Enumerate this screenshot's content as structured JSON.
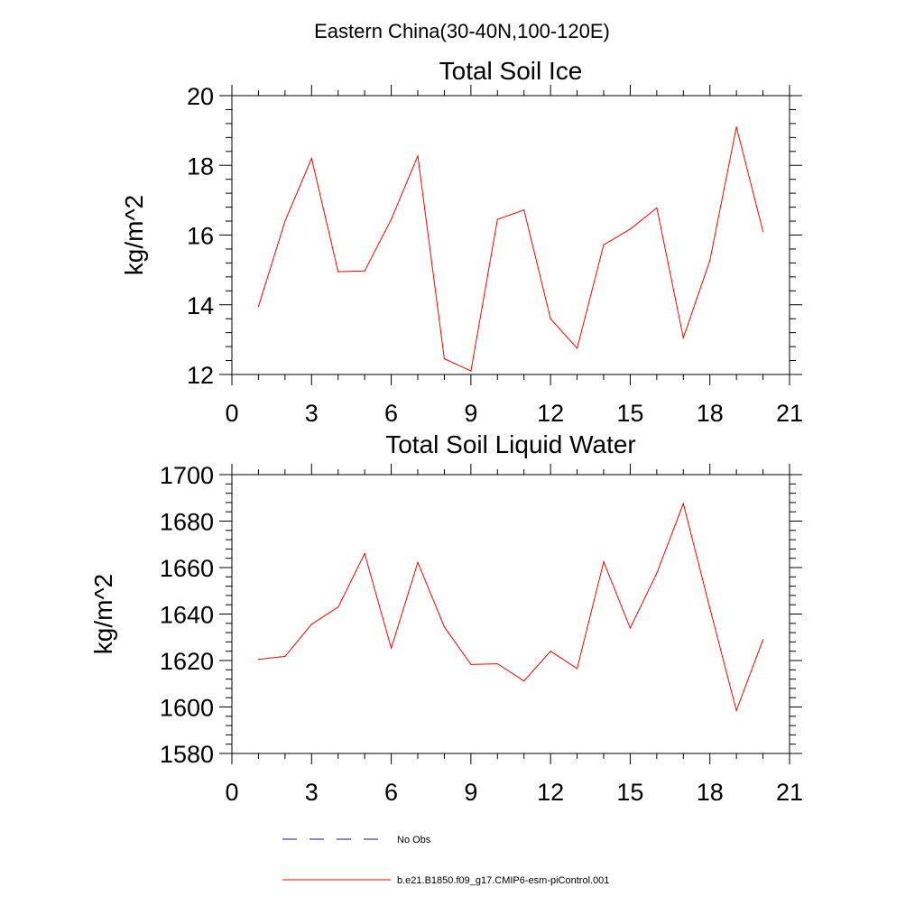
{
  "figure_title": "Eastern China(30-40N,100-120E)",
  "colors": {
    "series_line": "#ff0000",
    "obs_line": "#1a1a6e",
    "frame": "#000000"
  },
  "legend": [
    {
      "label": "No Obs",
      "style": "dashed",
      "color": "#1a1a6e"
    },
    {
      "label": "b.e21.B1850.f09_g17.CMIP6-esm-piControl.001",
      "style": "solid",
      "color": "#ff0000"
    }
  ],
  "chart_data": [
    {
      "type": "line",
      "title": "Total Soil Ice",
      "ylabel": "kg/m^2",
      "xlabel": "",
      "xlim": [
        0,
        21
      ],
      "ylim": [
        12,
        20
      ],
      "xticks": [
        0,
        3,
        6,
        9,
        12,
        15,
        18,
        21
      ],
      "yticks": [
        12,
        14,
        16,
        18,
        20
      ],
      "grid": false,
      "series": [
        {
          "name": "b.e21.B1850.f09_g17.CMIP6-esm-piControl.001",
          "x": [
            1,
            2,
            3,
            4,
            5,
            6,
            7,
            8,
            9,
            10,
            11,
            12,
            13,
            14,
            15,
            16,
            17,
            18,
            19,
            20
          ],
          "values": [
            13.95,
            16.4,
            18.2,
            14.95,
            14.97,
            16.45,
            18.27,
            12.45,
            12.1,
            16.45,
            16.72,
            13.6,
            12.75,
            15.72,
            16.17,
            16.78,
            13.05,
            15.27,
            19.1,
            16.1
          ]
        }
      ]
    },
    {
      "type": "line",
      "title": "Total Soil Liquid Water",
      "ylabel": "kg/m^2",
      "xlabel": "",
      "xlim": [
        0,
        21
      ],
      "ylim": [
        1580,
        1700
      ],
      "xticks": [
        0,
        3,
        6,
        9,
        12,
        15,
        18,
        21
      ],
      "yticks": [
        1580,
        1600,
        1620,
        1640,
        1660,
        1680,
        1700
      ],
      "grid": false,
      "series": [
        {
          "name": "b.e21.B1850.f09_g17.CMIP6-esm-piControl.001",
          "x": [
            1,
            2,
            3,
            4,
            5,
            6,
            7,
            8,
            9,
            10,
            11,
            12,
            13,
            14,
            15,
            16,
            17,
            18,
            19,
            20
          ],
          "values": [
            1620.5,
            1621.8,
            1635.6,
            1643.0,
            1666.0,
            1625.3,
            1662.2,
            1634.5,
            1618.3,
            1618.6,
            1611.2,
            1624.0,
            1616.5,
            1662.5,
            1634.0,
            1657.6,
            1687.5,
            1642.5,
            1598.5,
            1629.0
          ]
        }
      ]
    }
  ]
}
